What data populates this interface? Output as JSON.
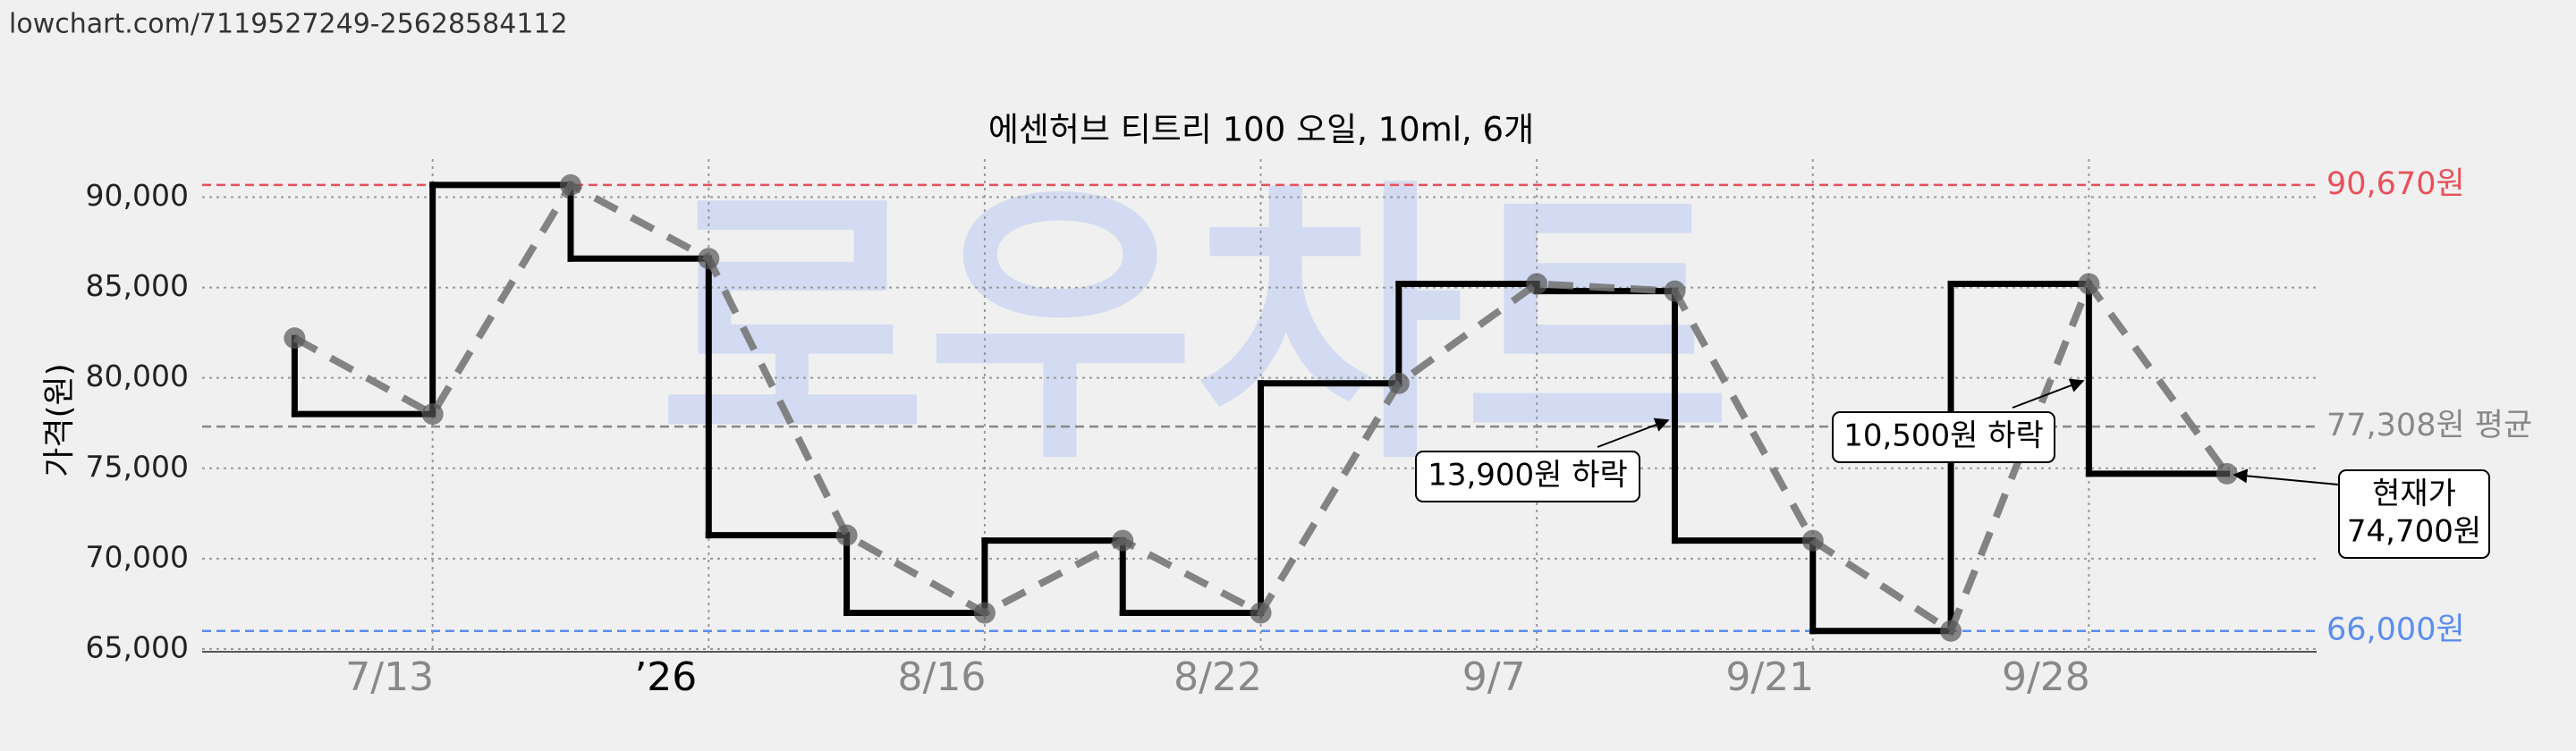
{
  "url": "lowchart.com/7119527249-25628584112",
  "chart_data": {
    "type": "line",
    "title": "에센허브 티트리 100 오일, 10ml, 6개",
    "y_label": "가격(원)",
    "watermark": "로우차트",
    "x": [
      0,
      1,
      2,
      3,
      4,
      5,
      6,
      7,
      8,
      9,
      10,
      11,
      12,
      13,
      14
    ],
    "series": [
      {
        "values": [
          82200,
          78000,
          90670,
          86600,
          71300,
          67000,
          71000,
          67000,
          79700,
          85200,
          84800,
          71000,
          66000,
          85200,
          74700
        ],
        "color": "#777777",
        "step_color": "#000000"
      }
    ],
    "xlim": [
      -0.67,
      14.65
    ],
    "xticks": [
      {
        "value": 1,
        "label": "7/13"
      },
      {
        "value": 3,
        "label": "’26"
      },
      {
        "value": 5,
        "label": "8/16"
      },
      {
        "value": 7,
        "label": "8/22"
      },
      {
        "value": 9,
        "label": "9/7"
      },
      {
        "value": 11,
        "label": "9/21"
      },
      {
        "value": 13,
        "label": "9/28"
      }
    ],
    "ylim": [
      64850,
      92100
    ],
    "yticks": [
      {
        "value": 65000,
        "label": "65,000"
      },
      {
        "value": 70000,
        "label": "70,000"
      },
      {
        "value": 75000,
        "label": "75,000"
      },
      {
        "value": 80000,
        "label": "80,000"
      },
      {
        "value": 85000,
        "label": "85,000"
      },
      {
        "value": 90000,
        "label": "90,000"
      }
    ],
    "grid": true,
    "reference_lines": [
      {
        "value": 90670,
        "label": "90,670원",
        "color": "#e8505b"
      },
      {
        "value": 77308,
        "label": "77,308원 평균",
        "color": "#888888"
      },
      {
        "value": 66000,
        "label": "66,000원",
        "color": "#5b8def"
      }
    ],
    "annotations": [
      {
        "lines": [
          "13,900원 하락"
        ]
      },
      {
        "lines": [
          "10,500원 하락"
        ]
      },
      {
        "lines": [
          "현재가",
          "74,700원"
        ]
      }
    ]
  }
}
